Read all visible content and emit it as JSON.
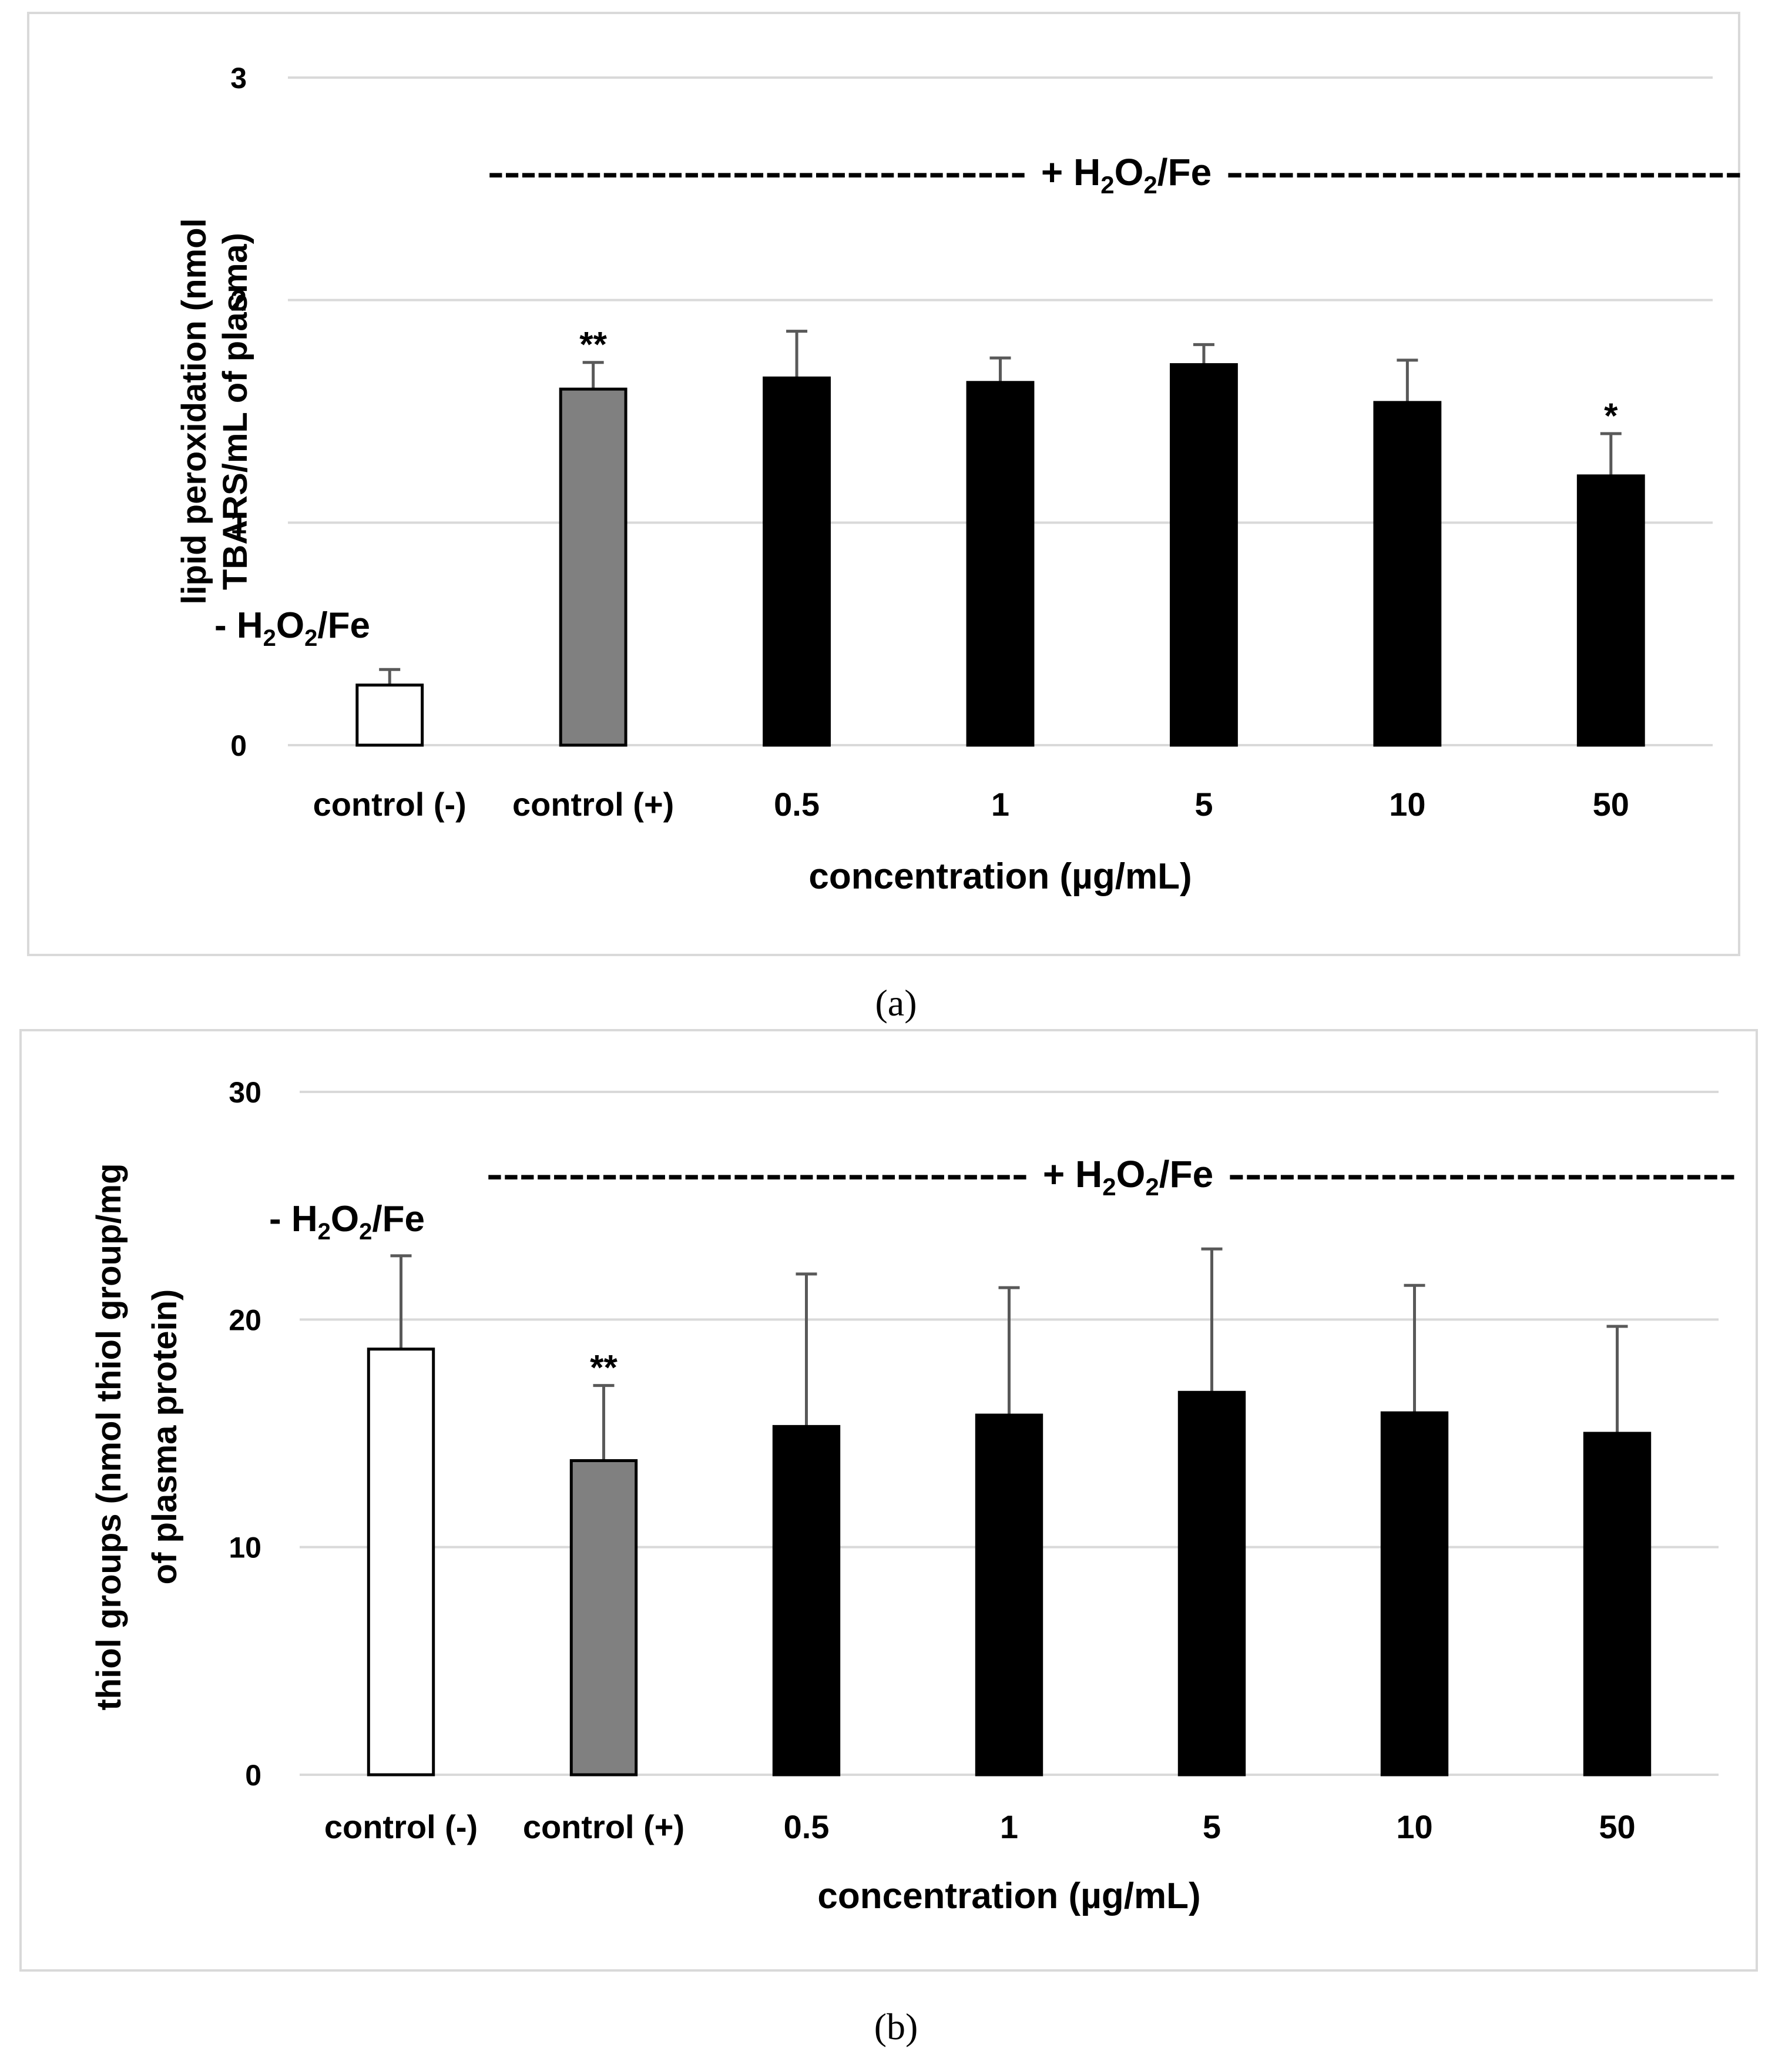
{
  "figure": {
    "panels": [
      {
        "label": "(a)"
      },
      {
        "label": "(b)"
      }
    ]
  },
  "colors": {
    "frame": "#d9d9d9",
    "gridline": "#d9d9d9",
    "error_bar": "#595959",
    "control_neg_fill": "#ffffff",
    "control_pos_fill": "#808080",
    "sample_fill": "#000000",
    "bar_outline": "#000000"
  },
  "chart_data": [
    {
      "type": "bar",
      "panel": "(a)",
      "title": "",
      "xlabel": "concentration (µg/mL)",
      "ylabel_lines": [
        "lipid peroxidation (nmol",
        "TBARS/mL of plasma)"
      ],
      "ylim": [
        0,
        3
      ],
      "yticks": [
        0,
        1,
        2,
        3
      ],
      "grid": true,
      "categories": [
        "control (-)",
        "control (+)",
        "0.5",
        "1",
        "5",
        "10",
        "50"
      ],
      "values": [
        0.27,
        1.6,
        1.65,
        1.63,
        1.71,
        1.54,
        1.21
      ],
      "errors": [
        0.07,
        0.12,
        0.21,
        0.11,
        0.09,
        0.19,
        0.19
      ],
      "bar_styles": [
        "control_neg",
        "control_pos",
        "sample",
        "sample",
        "sample",
        "sample",
        "sample"
      ],
      "significance": [
        "",
        "**",
        "",
        "",
        "",
        "",
        "*"
      ],
      "annotations": {
        "minus_label": {
          "prefix": "- H",
          "sub1": "2",
          "mid": "O",
          "sub2": "2",
          "suffix": "/Fe"
        },
        "plus_label": {
          "prefix": "+ H",
          "sub1": "2",
          "mid": "O",
          "sub2": "2",
          "suffix": "/Fe"
        },
        "left_dashes": "---------------------------------",
        "right_dashes": "------------------------------"
      }
    },
    {
      "type": "bar",
      "panel": "(b)",
      "title": "",
      "xlabel": "concentration (µg/mL)",
      "ylabel_lines": [
        "thiol groups (nmol thiol group/mg",
        "of plasma protein)"
      ],
      "ylim": [
        0,
        30
      ],
      "yticks": [
        0,
        10,
        20,
        30
      ],
      "grid": true,
      "categories": [
        "control (-)",
        "control (+)",
        "0.5",
        "1",
        "5",
        "10",
        "50"
      ],
      "values": [
        18.7,
        13.8,
        15.3,
        15.8,
        16.8,
        15.9,
        15.0
      ],
      "errors": [
        4.1,
        3.3,
        6.7,
        5.6,
        6.3,
        5.6,
        4.7
      ],
      "bar_styles": [
        "control_neg",
        "control_pos",
        "sample",
        "sample",
        "sample",
        "sample",
        "sample"
      ],
      "significance": [
        "",
        "**",
        "",
        "",
        "",
        "",
        ""
      ],
      "annotations": {
        "minus_label": {
          "prefix": "- H",
          "sub1": "2",
          "mid": "O",
          "sub2": "2",
          "suffix": "/Fe"
        },
        "plus_label": {
          "prefix": "+ H",
          "sub1": "2",
          "mid": "O",
          "sub2": "2",
          "suffix": "/Fe"
        },
        "left_dashes": "---------------------------------",
        "right_dashes": "------------------------------"
      }
    }
  ]
}
